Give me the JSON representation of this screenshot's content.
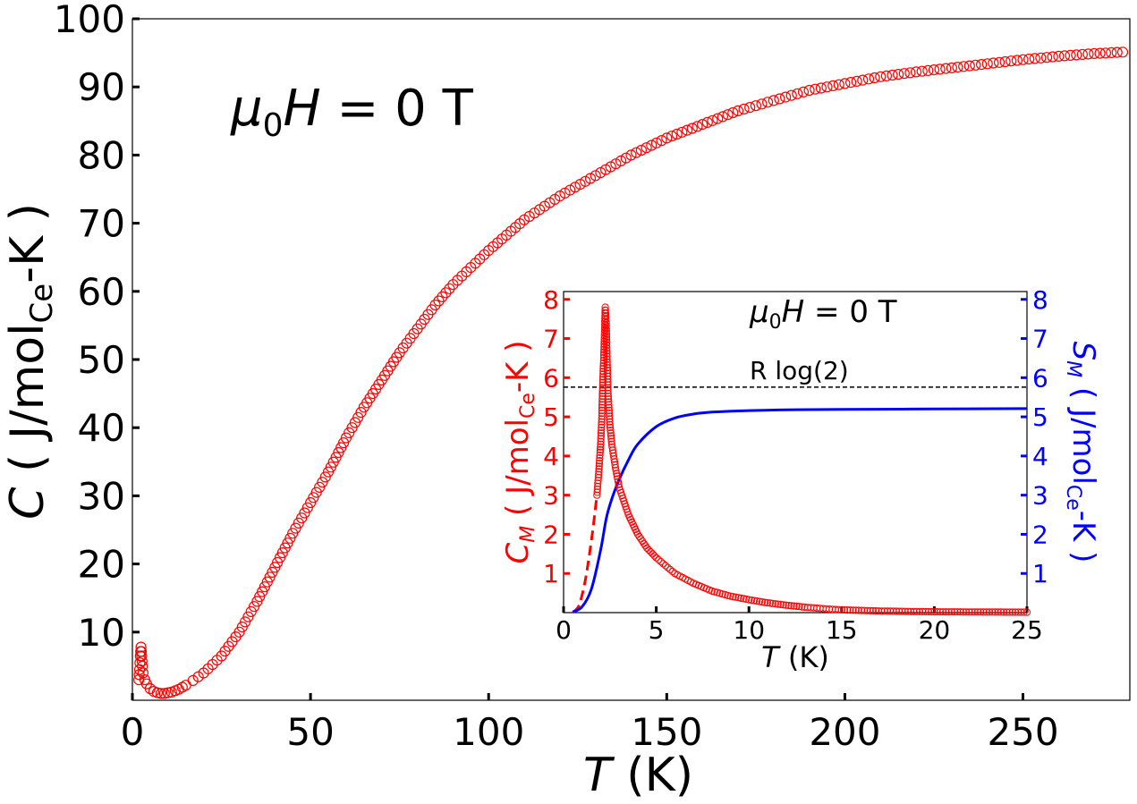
{
  "chart_data": [
    {
      "type": "scatter",
      "title": "",
      "annotation": {
        "prefix": "μ",
        "sub": "0",
        "var": "H",
        "rest": " = 0 T"
      },
      "xlabel": {
        "var": "T",
        "rest": " (K)"
      },
      "ylabel": {
        "var": "C",
        "open": " ( J/mol",
        "sub": "Ce",
        "close": "-K )"
      },
      "xlim": [
        0,
        280
      ],
      "ylim": [
        0,
        100
      ],
      "xticks": [
        "0",
        "50",
        "100",
        "150",
        "200",
        "250"
      ],
      "yticks": [
        "10",
        "20",
        "30",
        "40",
        "50",
        "60",
        "70",
        "80",
        "90",
        "100"
      ],
      "marker_color": "#ff0000",
      "series": [
        {
          "marker": "open-circle",
          "x": [
            1.8,
            2.0,
            2.2,
            2.4,
            2.6,
            2.8,
            3.0,
            3.5,
            4,
            5,
            6,
            7,
            8,
            9,
            10,
            11,
            12,
            13,
            14,
            15,
            17,
            20,
            25,
            30,
            35,
            40,
            45,
            50,
            55,
            60,
            65,
            70,
            75,
            80,
            85,
            90,
            95,
            100,
            110,
            120,
            130,
            140,
            150,
            160,
            170,
            180,
            190,
            200,
            210,
            220,
            230,
            240,
            250,
            260,
            270,
            278
          ],
          "y": [
            3.0,
            4.5,
            6.5,
            7.8,
            6.5,
            5.0,
            4.0,
            3.0,
            2.4,
            1.7,
            1.3,
            1.1,
            1.0,
            1.0,
            1.1,
            1.2,
            1.4,
            1.6,
            1.9,
            2.2,
            2.9,
            4.0,
            6.5,
            10.0,
            14.5,
            19.5,
            24.5,
            29.0,
            33.5,
            38.5,
            43.0,
            47.0,
            51.0,
            54.5,
            58.0,
            61.0,
            63.5,
            66.0,
            70.5,
            74.0,
            77.0,
            80.0,
            82.5,
            84.5,
            86.5,
            88.0,
            89.5,
            90.5,
            91.5,
            92.2,
            92.8,
            93.4,
            94.0,
            94.5,
            94.9,
            95.1
          ]
        }
      ]
    },
    {
      "type": "line",
      "title": "",
      "annotation": {
        "prefix": "μ",
        "sub": "0",
        "var": "H",
        "rest": " = 0 T"
      },
      "reference_line": {
        "label": "R log(2)",
        "y": 5.76,
        "style": "dashed"
      },
      "xlabel": {
        "var": "T",
        "rest": " (K)"
      },
      "ylabel_left": {
        "var": "C",
        "varsub": "M",
        "open": " ( J/mol",
        "sub": "Ce",
        "close": "-K )"
      },
      "ylabel_right": {
        "var": "S",
        "varsub": "M",
        "open": " ( J/mol",
        "sub": "Ce",
        "close": "-K )"
      },
      "xlim": [
        0,
        25
      ],
      "ylim": [
        0,
        8.2
      ],
      "xticks": [
        "0",
        "5",
        "10",
        "15",
        "20",
        "25"
      ],
      "yticks_left": [
        "1",
        "2",
        "3",
        "4",
        "5",
        "6",
        "7",
        "8"
      ],
      "yticks_right": [
        "1",
        "2",
        "3",
        "4",
        "5",
        "6",
        "7",
        "8"
      ],
      "left_color": "#ff0000",
      "right_color": "#0000ff",
      "series": [
        {
          "axis": "left",
          "marker": "open-circle",
          "x": [
            1.8,
            1.9,
            2.0,
            2.05,
            2.1,
            2.15,
            2.2,
            2.25,
            2.3,
            2.35,
            2.4,
            2.5,
            2.6,
            2.8,
            3.0,
            3.5,
            4.0,
            4.5,
            5,
            6,
            7,
            8,
            9,
            10,
            11,
            12,
            13,
            14,
            15,
            17,
            20,
            25
          ],
          "y": [
            3.0,
            3.6,
            4.3,
            4.8,
            5.6,
            6.3,
            7.0,
            7.8,
            7.4,
            6.4,
            5.6,
            4.8,
            4.3,
            3.7,
            3.2,
            2.5,
            2.0,
            1.65,
            1.4,
            1.0,
            0.75,
            0.55,
            0.42,
            0.33,
            0.25,
            0.19,
            0.14,
            0.1,
            0.07,
            0.04,
            0.02,
            0.01
          ]
        },
        {
          "axis": "left",
          "style": "dashed",
          "x": [
            0.5,
            0.8,
            1.0,
            1.2,
            1.4,
            1.6,
            1.8
          ],
          "y": [
            0.0,
            0.15,
            0.45,
            0.9,
            1.5,
            2.2,
            3.0
          ]
        },
        {
          "axis": "right",
          "style": "solid",
          "x": [
            0.5,
            1.0,
            1.5,
            2.0,
            2.3,
            2.6,
            3.0,
            3.5,
            4.0,
            5.0,
            6.0,
            7.0,
            8.0,
            10.0,
            12.0,
            15.0,
            20.0,
            25.0
          ],
          "y": [
            0.02,
            0.15,
            0.6,
            1.6,
            2.4,
            2.9,
            3.4,
            3.9,
            4.3,
            4.75,
            4.97,
            5.07,
            5.12,
            5.16,
            5.18,
            5.19,
            5.2,
            5.21
          ]
        }
      ]
    }
  ]
}
